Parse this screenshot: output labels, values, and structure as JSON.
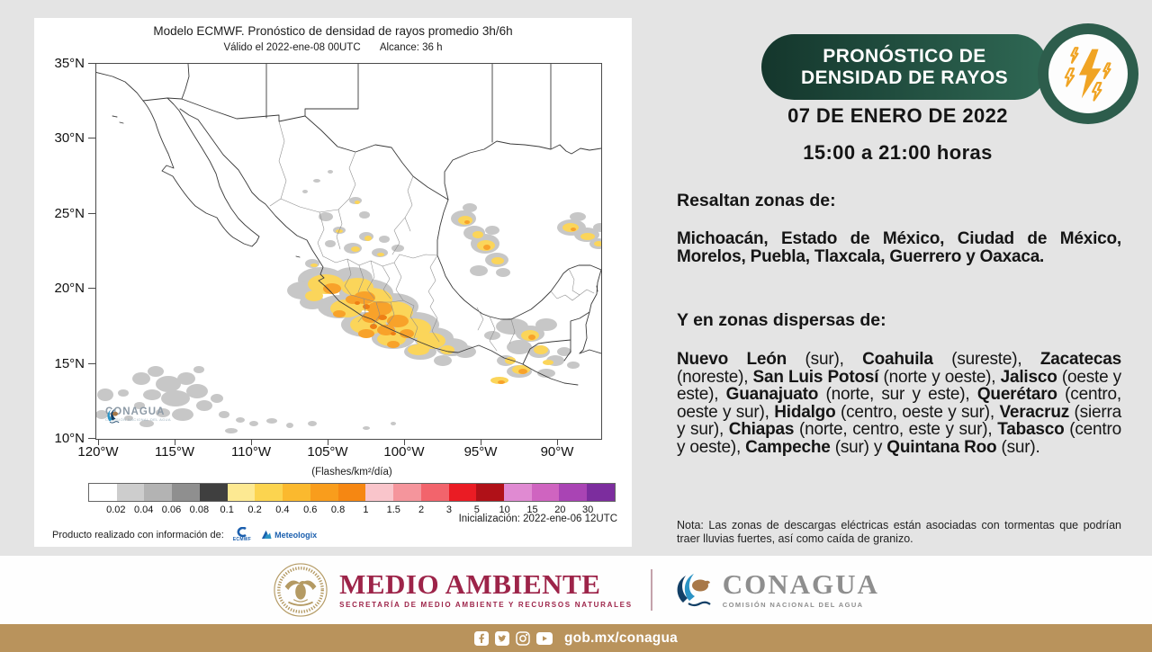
{
  "colors": {
    "page_bg": "#e4e4e4",
    "banner_green_dark": "#14362c",
    "banner_green": "#2f6854",
    "maroon": "#9d2449",
    "tan_bar": "#b9935c",
    "bolt_amber": "#f0a424",
    "blob_gray": "#c7c7c7",
    "blob_yellow": "#fbd55a",
    "blob_orange": "#f8a22a",
    "blob_deep_orange": "#ee7f15"
  },
  "map_panel": {
    "title": "Modelo ECMWF. Pronóstico de densidad de rayos promedio 3h/6h",
    "valid_label": "Válido el 2022-ene-08 00UTC",
    "range_label": "Alcance: 36 h",
    "y_ticks": [
      "35°N",
      "30°N",
      "25°N",
      "20°N",
      "15°N",
      "10°N"
    ],
    "x_ticks": [
      "120°W",
      "115°W",
      "110°W",
      "105°W",
      "100°W",
      "95°W",
      "90°W"
    ],
    "watermark": "CONAGUA",
    "watermark_subtitle": "COMISIÓN NACIONAL DEL AGUA",
    "colorbar": {
      "unit_label": "(Flashes/km²/día)",
      "tick_labels": [
        "0.02",
        "0.04",
        "0.06",
        "0.08",
        "0.1",
        "0.2",
        "0.4",
        "0.6",
        "0.8",
        "1",
        "1.5",
        "2",
        "3",
        "5",
        "10",
        "15",
        "20",
        "30"
      ],
      "segment_colors": [
        "#ffffff",
        "#cdcdcd",
        "#b3b3b3",
        "#8f8f8f",
        "#3f3f3f",
        "#fde992",
        "#fcd44f",
        "#fbb92e",
        "#f99d1c",
        "#f68712",
        "#f9c5cb",
        "#f5959c",
        "#f2646c",
        "#ea1c24",
        "#b01118",
        "#e08ad2",
        "#cf64c0",
        "#a944b4",
        "#7c2d9e"
      ]
    },
    "init_label": "Inicialización: 2022-ene-06 12UTC",
    "credit_label": "Producto realizado con información de:",
    "credit_logo_1": "ECMWF",
    "credit_logo_2": "Meteologix"
  },
  "sidebar": {
    "banner_line1": "PRONÓSTICO DE",
    "banner_line2": "DENSIDAD DE RAYOS",
    "date": "07 DE ENERO DE 2022",
    "time_range": "15:00 a 21:00 horas",
    "highlight_heading": "Resaltan zonas de:",
    "highlight_states": "Michoacán, Estado de México, Ciudad de México, Morelos, Puebla, Tlaxcala, Guerrero y Oaxaca.",
    "dispersed_heading": "Y en zonas dispersas de:",
    "dispersed_segments": [
      {
        "b": "Nuevo León"
      },
      {
        "t": " (sur), "
      },
      {
        "b": "Coahuila"
      },
      {
        "t": " (sureste), "
      },
      {
        "b": "Zacatecas"
      },
      {
        "t": " (noreste), "
      },
      {
        "b": "San Luis Potosí"
      },
      {
        "t": " (norte y oeste), "
      },
      {
        "b": "Jalisco"
      },
      {
        "t": " (oeste y este), "
      },
      {
        "b": "Guanajuato"
      },
      {
        "t": " (norte, sur y este), "
      },
      {
        "b": "Querétaro"
      },
      {
        "t": " (centro, oeste y sur), "
      },
      {
        "b": "Hidalgo"
      },
      {
        "t": " (centro, oeste y sur), "
      },
      {
        "b": "Veracruz"
      },
      {
        "t": " (sierra y sur), "
      },
      {
        "b": "Chiapas"
      },
      {
        "t": " (norte, centro, este y sur), "
      },
      {
        "b": "Tabasco"
      },
      {
        "t": " (centro y oeste), "
      },
      {
        "b": "Campeche"
      },
      {
        "t": " (sur) y "
      },
      {
        "b": "Quintana Roo"
      },
      {
        "t": " (sur)."
      }
    ],
    "note": "Nota: Las zonas de descargas eléctricas están asociadas con tormentas que podrían traer lluvias fuertes, así como caída de granizo."
  },
  "footer": {
    "semarnat_title": "MEDIO AMBIENTE",
    "semarnat_subtitle": "SECRETARÍA DE MEDIO AMBIENTE Y RECURSOS NATURALES",
    "conagua_title": "CONAGUA",
    "conagua_subtitle": "COMISIÓN NACIONAL DEL AGUA",
    "social_url": "gob.mx/conagua"
  }
}
